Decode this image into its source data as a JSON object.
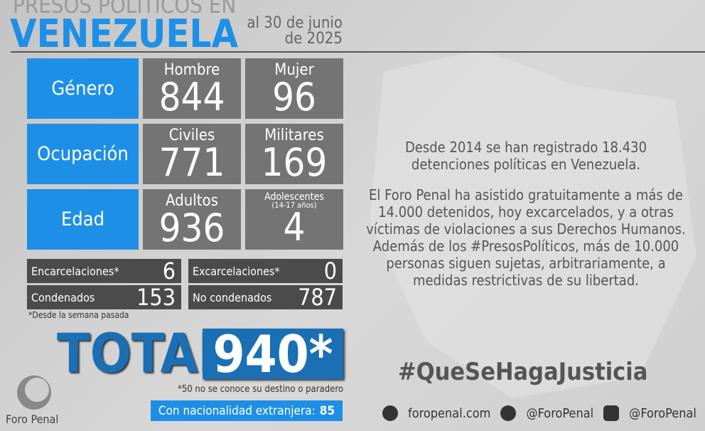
{
  "header": {
    "title_top": "PRESOS POLÍTICOS EN",
    "title_main": "VENEZUELA",
    "date_line1": "al 30 de junio",
    "date_line2": "de 2025"
  },
  "rows": [
    {
      "label": "Género",
      "cells": [
        {
          "label": "Hombre",
          "value": 844
        },
        {
          "label": "Mujer",
          "value": 96
        }
      ]
    },
    {
      "label": "Ocupación",
      "cells": [
        {
          "label": "Civiles",
          "value": 771
        },
        {
          "label": "Militares",
          "value": 169
        }
      ]
    },
    {
      "label": "Edad",
      "cells": [
        {
          "label": "Adultos",
          "value": 936
        },
        {
          "label": "Adolescentes",
          "sublabel": "(14-17 años)",
          "value": 4
        }
      ]
    }
  ],
  "changes": [
    {
      "label": "Encarcelaciones*",
      "value": 6
    },
    {
      "label": "Excarcelaciones*",
      "value": 0
    },
    {
      "label": "Condenados",
      "value": 153
    },
    {
      "label": "No condenados",
      "value": 787
    }
  ],
  "changes_note": "*Desde la semana pasada",
  "total": {
    "label": "TOTAL",
    "value": "940*",
    "note": "*50 no se conoce su destino o paradero",
    "foreign_label": "Con nacionalidad extranjera:",
    "foreign_value": 85
  },
  "paragraphs": [
    "Desde 2014 se han registrado 18.430 detenciones políticas en Venezuela.",
    "El Foro Penal ha asistido gratuitamente a más de 14.000 detenidos, hoy excarcelados, y a otras víctimas de violaciones a sus Derechos Humanos. Además de los #PresosPolíticos, más de 10.000 personas siguen sujetas, arbitrariamente, a medidas restrictivas de su libertad."
  ],
  "hashtag": "#QueSeHagaJusticia",
  "footer": {
    "website": "foropenal.com",
    "twitter": "@ForoPenal",
    "instagram": "@ForoPenal",
    "logo": "Foro Penal"
  }
}
